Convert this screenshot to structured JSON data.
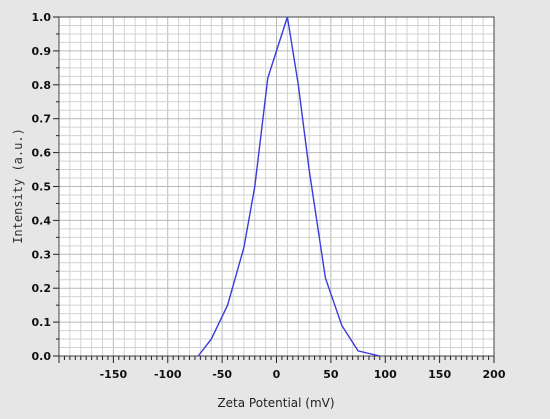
{
  "chart_data": {
    "type": "line",
    "title": "",
    "xlabel": "Zeta Potential (mV)",
    "ylabel": "Intensity (a.u.)",
    "xlim": [
      -200,
      200
    ],
    "ylim": [
      0,
      1.0
    ],
    "grid": true,
    "legend": "none",
    "line_color": "#3b3bdc",
    "x_ticks": [
      -150,
      -100,
      -50,
      0,
      50,
      100,
      150,
      200
    ],
    "x_tick_labels": [
      "-150",
      "-100",
      "-50",
      "0",
      "50",
      "100",
      "150",
      "200"
    ],
    "y_ticks": [
      0,
      0.1,
      0.2,
      0.3,
      0.4,
      0.5,
      0.6,
      0.7,
      0.8,
      0.9,
      1.0
    ],
    "y_tick_labels": [
      "0.0",
      "0.1",
      "0.2",
      "0.3",
      "0.4",
      "0.5",
      "0.6",
      "0.7",
      "0.8",
      "0.9",
      "1.0"
    ],
    "series": [
      {
        "x": [
          -72,
          -60,
          -45,
          -30,
          -20,
          -8,
          0,
          10,
          20,
          30,
          45,
          60,
          75,
          95
        ],
        "values": [
          0,
          0.05,
          0.15,
          0.32,
          0.5,
          0.82,
          0.9,
          1.0,
          0.8,
          0.55,
          0.23,
          0.09,
          0.015,
          0
        ]
      }
    ]
  }
}
